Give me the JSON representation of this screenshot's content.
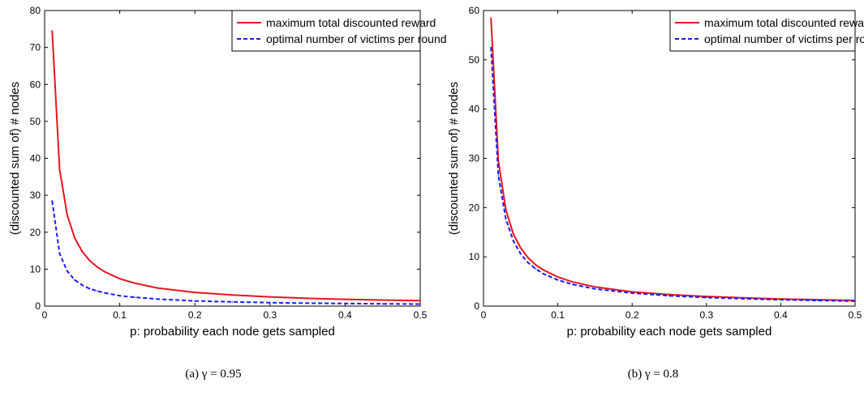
{
  "chart_data": [
    {
      "type": "line",
      "xlabel": "p: probability each node gets sampled",
      "ylabel": "(discounted sum of) # nodes",
      "xlim": [
        0,
        0.5
      ],
      "ylim": [
        0,
        80
      ],
      "xticks": [
        0,
        0.1,
        0.2,
        0.3,
        0.4,
        0.5
      ],
      "xtick_labels": [
        "0",
        "0.1",
        "0.2",
        "0.3",
        "0.4",
        "0.5"
      ],
      "yticks": [
        0,
        10,
        20,
        30,
        40,
        50,
        60,
        70,
        80
      ],
      "ytick_labels": [
        "0",
        "10",
        "20",
        "30",
        "40",
        "50",
        "60",
        "70",
        "80"
      ],
      "grid": false,
      "legend_position": "top-right",
      "caption": "(a) γ = 0.95",
      "x": [
        0.01,
        0.02,
        0.03,
        0.04,
        0.05,
        0.06,
        0.07,
        0.08,
        0.1,
        0.12,
        0.15,
        0.2,
        0.25,
        0.3,
        0.35,
        0.4,
        0.45,
        0.5
      ],
      "series": [
        {
          "name": "maximum total discounted reward",
          "color": "#e8141c",
          "style": "solid",
          "values": [
            74.5,
            37,
            24.7,
            18.5,
            14.8,
            12.3,
            10.6,
            9.3,
            7.4,
            6.2,
            4.9,
            3.7,
            3.0,
            2.5,
            2.1,
            1.85,
            1.65,
            1.5
          ]
        },
        {
          "name": "optimal number of victims per round",
          "color": "#1a1aff",
          "style": "dashed",
          "values": [
            28.5,
            14.2,
            9.5,
            7.1,
            5.7,
            4.7,
            4.1,
            3.6,
            2.8,
            2.4,
            1.9,
            1.4,
            1.15,
            0.95,
            0.8,
            0.7,
            0.62,
            0.55
          ]
        }
      ]
    },
    {
      "type": "line",
      "xlabel": "p: probability each node gets sampled",
      "ylabel": "(discounted sum of) # nodes",
      "xlim": [
        0,
        0.5
      ],
      "ylim": [
        0,
        60
      ],
      "xticks": [
        0,
        0.1,
        0.2,
        0.3,
        0.4,
        0.5
      ],
      "xtick_labels": [
        "0",
        "0.1",
        "0.2",
        "0.3",
        "0.4",
        "0.5"
      ],
      "yticks": [
        0,
        10,
        20,
        30,
        40,
        50,
        60
      ],
      "ytick_labels": [
        "0",
        "10",
        "20",
        "30",
        "40",
        "50",
        "60"
      ],
      "grid": false,
      "legend_position": "top-right",
      "caption": "(b) γ = 0.8",
      "x": [
        0.01,
        0.02,
        0.03,
        0.04,
        0.05,
        0.06,
        0.07,
        0.08,
        0.1,
        0.12,
        0.15,
        0.2,
        0.25,
        0.3,
        0.35,
        0.4,
        0.45,
        0.5
      ],
      "series": [
        {
          "name": "maximum total discounted reward",
          "color": "#e8141c",
          "style": "solid",
          "values": [
            58.5,
            29.5,
            19.6,
            14.7,
            11.8,
            9.8,
            8.4,
            7.4,
            5.9,
            4.9,
            3.9,
            2.9,
            2.35,
            1.95,
            1.7,
            1.45,
            1.3,
            1.15
          ]
        },
        {
          "name": "optimal number of victims per round",
          "color": "#1a1aff",
          "style": "dashed",
          "values": [
            52.5,
            26.5,
            17.7,
            13.3,
            10.6,
            8.8,
            7.6,
            6.6,
            5.3,
            4.4,
            3.5,
            2.65,
            2.1,
            1.75,
            1.5,
            1.3,
            1.15,
            1.0
          ]
        }
      ]
    }
  ]
}
